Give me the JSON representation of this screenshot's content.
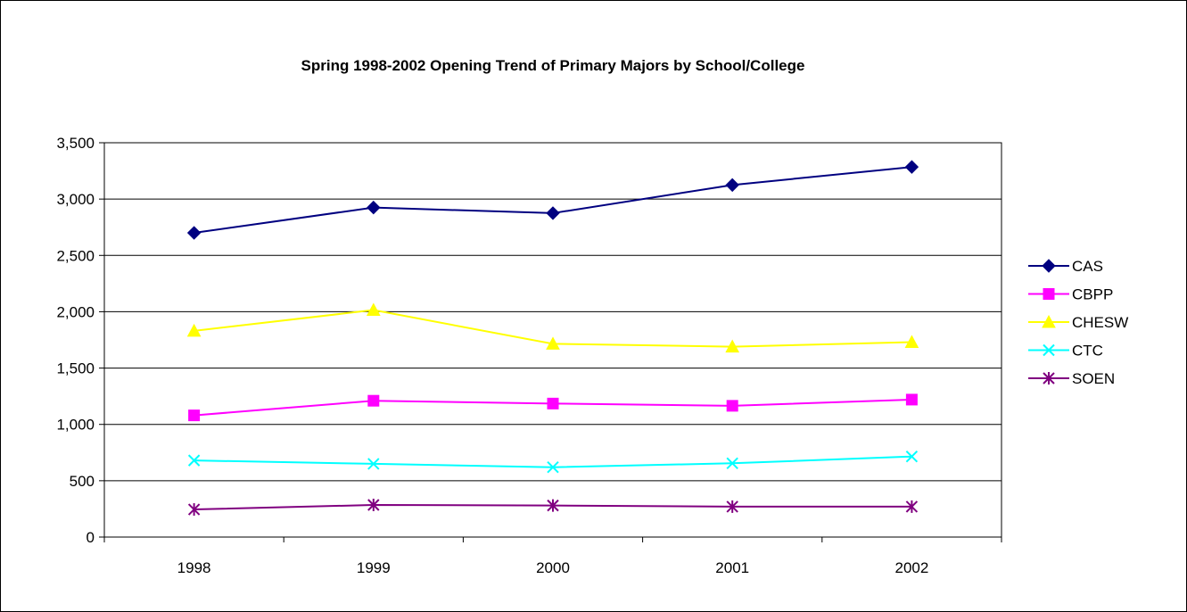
{
  "chart_data": {
    "type": "line",
    "title": "Spring 1998-2002 Opening Trend of Primary Majors by  School/College",
    "xlabel": "",
    "ylabel": "",
    "categories": [
      "1998",
      "1999",
      "2000",
      "2001",
      "2002"
    ],
    "y_ticks": [
      "0",
      "500",
      "1,000",
      "1,500",
      "2,000",
      "2,500",
      "3,000",
      "3,500"
    ],
    "ylim": [
      0,
      3500
    ],
    "grid": true,
    "legend_position": "right",
    "series": [
      {
        "name": "CAS",
        "values": [
          2700,
          2925,
          2875,
          3125,
          3285
        ],
        "color": "#000080",
        "marker": "diamond"
      },
      {
        "name": "CBPP",
        "values": [
          1080,
          1210,
          1185,
          1165,
          1220
        ],
        "color": "#ff00ff",
        "marker": "square"
      },
      {
        "name": "CHESW",
        "values": [
          1830,
          2015,
          1715,
          1690,
          1730
        ],
        "color": "#ffff00",
        "marker": "triangle"
      },
      {
        "name": "CTC",
        "values": [
          680,
          650,
          620,
          655,
          715
        ],
        "color": "#00ffff",
        "marker": "x"
      },
      {
        "name": "SOEN",
        "values": [
          245,
          285,
          280,
          270,
          270
        ],
        "color": "#800080",
        "marker": "star"
      }
    ]
  }
}
